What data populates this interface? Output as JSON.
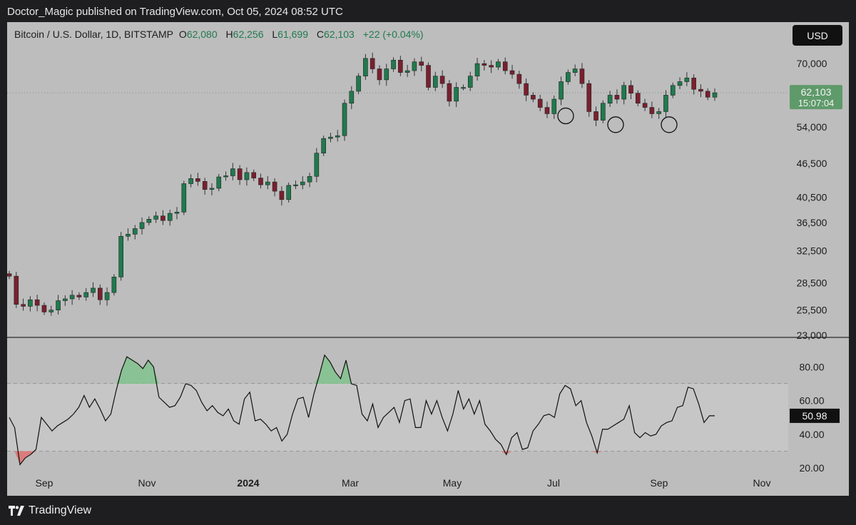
{
  "header": {
    "published_text": "Doctor_Magic published on TradingView.com, Oct 05, 2024 08:52 UTC"
  },
  "legend": {
    "symbol": "Bitcoin / U.S. Dollar, 1D, BITSTAMP",
    "open_label": "O",
    "open": "62,080",
    "high_label": "H",
    "high": "62,256",
    "low_label": "L",
    "low": "61,699",
    "close_label": "C",
    "close": "62,103",
    "change": "+22 (+0.04%)"
  },
  "currency_button": "USD",
  "price_axis": {
    "ticks": [
      "70,000",
      "54,000",
      "46,500",
      "40,500",
      "36,500",
      "32,500",
      "28,500",
      "25,500",
      "23,000"
    ],
    "current_price": "62,103",
    "countdown": "15:07:04"
  },
  "rsi_axis": {
    "ticks": [
      "80.00",
      "60.00",
      "40.00",
      "20.00"
    ],
    "current_value": "50.98"
  },
  "time_axis": {
    "labels": [
      "Sep",
      "Nov",
      "2024",
      "Mar",
      "May",
      "Jul",
      "Sep",
      "Nov"
    ]
  },
  "footer": {
    "brand": "TradingView"
  },
  "colors": {
    "background": "#bdbdbd",
    "up": "#1f7a4d",
    "down": "#7a1f2e",
    "price_tag": "#5f9a6a",
    "rsi_overbought_fill": "#7cc38a",
    "rsi_oversold_fill": "#e06b6b"
  },
  "chart_data": [
    {
      "type": "line",
      "title": "Bitcoin / U.S. Dollar, 1D, BITSTAMP",
      "x_ticks": [
        "Sep",
        "Nov",
        "2024",
        "Mar",
        "May",
        "Jul",
        "Sep",
        "Nov"
      ],
      "y_scale": "log",
      "ylim": [
        22800,
        76000
      ],
      "y_ticks": [
        70000,
        54000,
        46500,
        40500,
        36500,
        32500,
        28500,
        25500,
        23000
      ],
      "last_close": 62103,
      "series": [
        {
          "values": [
            29300,
            26100,
            25900,
            26600,
            26000,
            25300,
            25500,
            26500,
            26700,
            27100,
            26900,
            27400,
            27900,
            26600,
            27400,
            29200,
            34500,
            34800,
            35600,
            36500,
            37000,
            37500,
            36800,
            37900,
            38100,
            42800,
            43700,
            43200,
            41800,
            42000,
            44000,
            44200,
            45500,
            43500,
            44800,
            43800,
            42600,
            43100,
            41500,
            40100,
            42500,
            42600,
            43100,
            44100,
            48500,
            51500,
            51800,
            52100,
            59500,
            62500,
            66500,
            71500,
            68500,
            65500,
            68500,
            71000,
            67500,
            68000,
            70500,
            69500,
            63500,
            66500,
            64500,
            60000,
            63500,
            63500,
            66500,
            70000,
            69500,
            69000,
            70500,
            68000,
            67000,
            64500,
            61500,
            60500,
            58500,
            57000,
            60500,
            65000,
            67500,
            68500,
            64500,
            57500,
            55500,
            59500,
            61500,
            60500,
            64000,
            62000,
            59500,
            58500,
            57000,
            57500,
            61500,
            64000,
            65000,
            66000,
            63000,
            62500,
            61000,
            62100
          ],
          "dates_span": "2023-08-20 .. 2024-10-05 (approx. every 4 days)"
        }
      ],
      "annotations": [
        {
          "type": "circle",
          "x_approx": "Jul 2024",
          "y": 56500
        },
        {
          "type": "circle",
          "x_approx": "Aug 2024",
          "y": 54500
        },
        {
          "type": "circle",
          "x_approx": "Sep 2024",
          "y": 54500
        }
      ]
    },
    {
      "type": "line",
      "title": "",
      "ylim": [
        12,
        92
      ],
      "y_ticks": [
        80,
        60,
        40,
        20
      ],
      "levels": [
        70,
        50,
        30
      ],
      "last_value": 50.98,
      "series": [
        {
          "values": [
            50,
            44,
            22,
            26,
            28,
            31,
            50,
            46,
            42,
            45,
            47,
            49,
            52,
            56,
            63,
            56,
            61,
            55,
            48,
            52,
            66,
            78,
            86,
            84,
            82,
            79,
            84,
            80,
            62,
            59,
            56,
            57,
            62,
            70,
            69,
            66,
            59,
            54,
            57,
            53,
            51,
            55,
            48,
            46,
            61,
            65,
            48,
            49,
            46,
            42,
            44,
            36,
            40,
            52,
            61,
            62,
            50,
            64,
            75,
            87,
            83,
            77,
            73,
            84,
            70,
            69,
            52,
            48,
            58,
            44,
            50,
            53,
            56,
            47,
            60,
            61,
            44,
            44,
            60,
            52,
            60,
            50,
            42,
            52,
            66,
            55,
            61,
            52,
            60,
            46,
            42,
            37,
            34,
            28,
            38,
            41,
            31,
            32,
            42,
            46,
            51,
            52,
            50,
            64,
            69,
            67,
            57,
            60,
            47,
            39,
            29,
            43,
            43,
            45,
            47,
            49,
            57,
            41,
            38,
            41,
            39,
            40,
            45,
            47,
            48,
            56,
            57,
            68,
            67,
            58,
            47,
            51,
            50.98
          ],
          "dates_span": "2023-08-20 .. 2024-10-05"
        }
      ]
    }
  ]
}
